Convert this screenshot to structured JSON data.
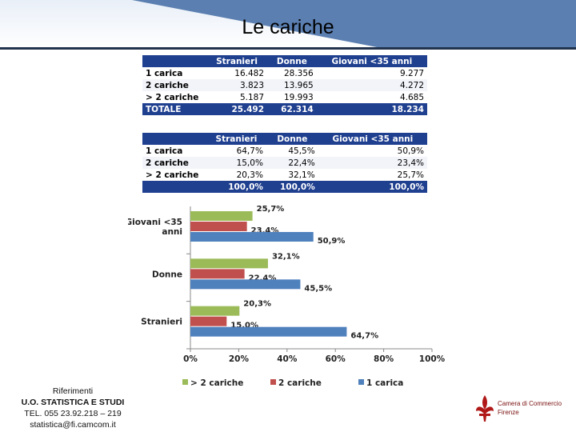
{
  "title": "Le cariche",
  "table1": {
    "headers": [
      "",
      "Stranieri",
      "Donne",
      "Giovani <35 anni"
    ],
    "rows": [
      [
        "1 carica",
        "16.482",
        "28.356",
        "9.277"
      ],
      [
        "2 cariche",
        "3.823",
        "13.965",
        "4.272"
      ],
      [
        "> 2 cariche",
        "5.187",
        "19.993",
        "4.685"
      ]
    ],
    "total": [
      "TOTALE",
      "25.492",
      "62.314",
      "18.234"
    ]
  },
  "table2": {
    "headers": [
      "",
      "Stranieri",
      "Donne",
      "Giovani <35 anni"
    ],
    "rows": [
      [
        "1 carica",
        "64,7%",
        "45,5%",
        "50,9%"
      ],
      [
        "2 cariche",
        "15,0%",
        "22,4%",
        "23,4%"
      ],
      [
        "> 2 cariche",
        "20,3%",
        "32,1%",
        "25,7%"
      ]
    ],
    "total": [
      "",
      "100,0%",
      "100,0%",
      "100,0%"
    ]
  },
  "chart_data": {
    "type": "bar",
    "orientation": "horizontal",
    "categories": [
      "Giovani <35 anni",
      "Donne",
      "Stranieri"
    ],
    "series": [
      {
        "name": "> 2 cariche",
        "values": [
          25.7,
          32.1,
          20.3
        ],
        "labels": [
          "25,7%",
          "32,1%",
          "20,3%"
        ],
        "color": "#9bbb59"
      },
      {
        "name": "2 cariche",
        "values": [
          23.4,
          22.4,
          15.0
        ],
        "labels": [
          "23,4%",
          "22,4%",
          "15,0%"
        ],
        "color": "#c0504d"
      },
      {
        "name": "1 carica",
        "values": [
          50.9,
          45.5,
          64.7
        ],
        "labels": [
          "50,9%",
          "45,5%",
          "64,7%"
        ],
        "color": "#4f81bd"
      }
    ],
    "xlim": [
      0,
      100
    ],
    "xticks": [
      "0%",
      "20%",
      "40%",
      "60%",
      "80%",
      "100%"
    ],
    "legend": "bottom",
    "grid": false
  },
  "footer": {
    "line1": "Riferimenti",
    "line2": "U.O. STATISTICA E STUDI",
    "line3": "TEL. 055 23.92.218 – 219",
    "line4": "statistica@fi.camcom.it"
  },
  "logo": {
    "line1": "Camera di Commercio",
    "line2": "Firenze",
    "color": "#b01818"
  },
  "colors": {
    "header_band": "#5b7fb0",
    "table_header": "#1f3f8f"
  }
}
